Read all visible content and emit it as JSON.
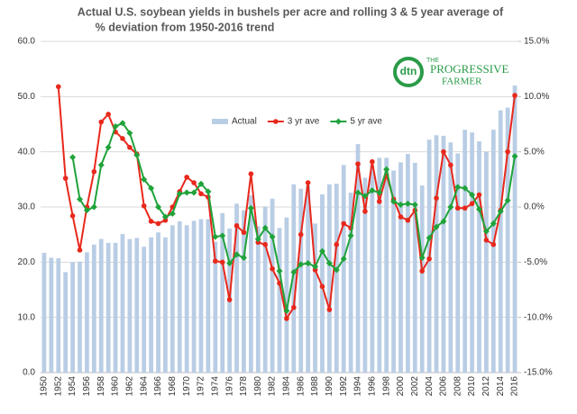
{
  "chart_data": {
    "type": "bar_line",
    "title": [
      "Actual U.S. soybean yields in bushels per acre and rolling 3 & 5 year average of",
      "%  deviation from 1950-2016 trend"
    ],
    "logo": {
      "mark": "dtn",
      "the": "THE",
      "name": "PROGRESSIVE",
      "sub": "FARMER"
    },
    "categories": [
      "1950",
      null,
      "1952",
      null,
      "1954",
      null,
      "1956",
      null,
      "1958",
      null,
      "1960",
      null,
      "1962",
      null,
      "1964",
      null,
      "1966",
      null,
      "1968",
      null,
      "1970",
      null,
      "1972",
      null,
      "1974",
      null,
      "1976",
      null,
      "1978",
      null,
      "1980",
      null,
      "1982",
      null,
      "1984",
      null,
      "1986",
      null,
      "1988",
      null,
      "1990",
      null,
      "1992",
      null,
      "1994",
      null,
      "1996",
      null,
      "1998",
      null,
      "2000",
      null,
      "2002",
      null,
      "2004",
      null,
      "2006",
      null,
      "2008",
      null,
      "2010",
      null,
      "2012",
      null,
      "2014",
      null,
      "2016"
    ],
    "series": [
      {
        "name": "Actual",
        "kind": "bar",
        "axis": "y",
        "color": "#b9cde5",
        "values": [
          21.7,
          20.8,
          20.7,
          18.2,
          20.0,
          20.1,
          21.8,
          23.2,
          24.2,
          23.5,
          23.5,
          25.1,
          24.2,
          24.4,
          22.8,
          24.5,
          25.4,
          24.5,
          26.7,
          27.4,
          26.7,
          27.5,
          27.8,
          27.8,
          23.7,
          28.9,
          26.1,
          30.6,
          29.4,
          32.1,
          26.5,
          30.1,
          31.5,
          26.2,
          28.1,
          34.1,
          33.3,
          33.9,
          27.0,
          32.3,
          34.1,
          34.2,
          37.6,
          32.6,
          41.4,
          35.3,
          37.6,
          38.9,
          38.9,
          36.6,
          38.1,
          39.6,
          38.0,
          33.9,
          42.2,
          43.0,
          42.9,
          41.7,
          39.7,
          44.0,
          43.5,
          41.9,
          40.0,
          44.0,
          47.5,
          48.0,
          52.0
        ]
      },
      {
        "name": "3 yr ave",
        "kind": "line",
        "marker": "circle",
        "axis": "y2",
        "color": "#e8281c",
        "values": [
          null,
          null,
          10.9,
          2.6,
          -0.8,
          -3.9,
          0.0,
          3.2,
          7.7,
          8.4,
          6.8,
          6.2,
          5.4,
          4.8,
          0.1,
          -1.3,
          -1.5,
          -1.2,
          0.0,
          1.4,
          2.7,
          2.2,
          1.2,
          0.9,
          -4.9,
          -5.0,
          -8.4,
          -1.7,
          -2.3,
          3.0,
          -3.2,
          -3.4,
          -5.6,
          -6.9,
          -10.1,
          -9.1,
          -2.5,
          2.2,
          -5.7,
          -7.2,
          -9.3,
          -3.4,
          -1.5,
          -1.9,
          3.9,
          -0.4,
          4.1,
          0.5,
          2.9,
          0.7,
          -0.9,
          -1.2,
          -0.3,
          -5.8,
          -4.7,
          0.8,
          5.0,
          3.8,
          -0.1,
          -0.1,
          0.3,
          1.1,
          -3.0,
          -3.4,
          -0.3,
          5.0,
          10.1
        ]
      },
      {
        "name": "5 yr ave",
        "kind": "line",
        "marker": "diamond",
        "axis": "y2",
        "color": "#1fa33a",
        "values": [
          null,
          null,
          null,
          null,
          4.5,
          0.7,
          -0.3,
          0.0,
          3.8,
          5.4,
          7.3,
          7.6,
          6.7,
          4.7,
          2.5,
          1.7,
          0.0,
          -0.9,
          -0.6,
          1.2,
          1.3,
          1.3,
          2.1,
          1.4,
          -2.7,
          -2.6,
          -5.1,
          -4.3,
          -4.6,
          -0.1,
          -2.9,
          -1.9,
          -2.7,
          -5.8,
          -9.4,
          -5.9,
          -5.2,
          -5.1,
          -5.4,
          -4.0,
          -5.1,
          -5.7,
          -4.7,
          -2.6,
          1.3,
          1.0,
          1.5,
          1.3,
          3.4,
          0.5,
          0.2,
          0.3,
          0.2,
          -4.6,
          -2.8,
          -1.8,
          -1.3,
          0.0,
          1.8,
          1.7,
          1.1,
          -0.2,
          -2.2,
          -1.5,
          -0.4,
          0.6,
          4.6
        ]
      }
    ],
    "ylim": [
      0,
      60
    ],
    "yticks": [
      {
        "value": 0,
        "label": "0.0"
      },
      {
        "value": 10,
        "label": "10.0"
      },
      {
        "value": 20,
        "label": "20.0"
      },
      {
        "value": 30,
        "label": "30.0"
      },
      {
        "value": 40,
        "label": "40.0"
      },
      {
        "value": 50,
        "label": "50.0"
      },
      {
        "value": 60,
        "label": "60.0"
      }
    ],
    "y2lim": [
      -15,
      15
    ],
    "y2ticks": [
      {
        "value": -15,
        "label": "-15.0%"
      },
      {
        "value": -10,
        "label": "-10.0%"
      },
      {
        "value": -5,
        "label": "-5.0%"
      },
      {
        "value": 0,
        "label": "0.0%"
      },
      {
        "value": 5,
        "label": "5.0%"
      },
      {
        "value": 10,
        "label": "10.0%"
      },
      {
        "value": 15,
        "label": "15.0%"
      }
    ],
    "grid": true,
    "legend": "upper center"
  }
}
